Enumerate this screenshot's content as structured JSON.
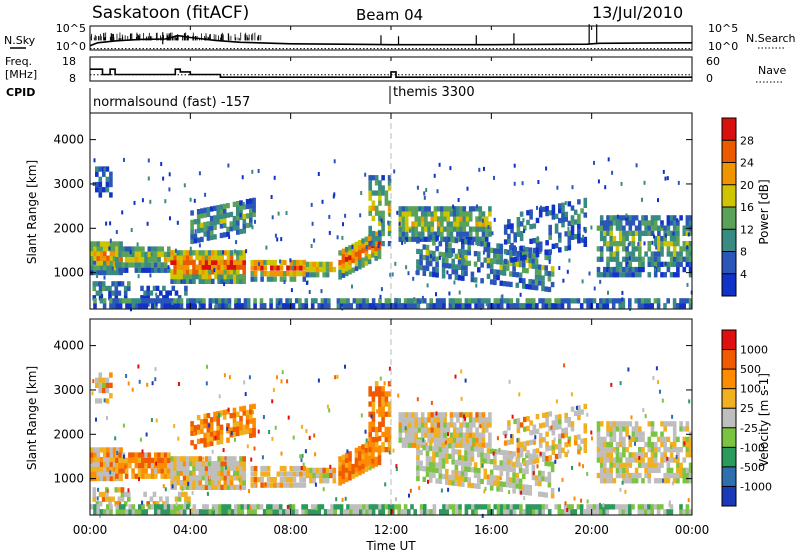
{
  "header": {
    "station": "Saskatoon (fitACF)",
    "beam": "Beam 04",
    "date": "13/Jul/2010"
  },
  "left_labels": {
    "nsky": "N.Sky",
    "freq_line1": "Freq.",
    "freq_line2": "[MHz]",
    "cpid": "CPID"
  },
  "right_labels": {
    "nsearch": "N.Search",
    "nave": "Nave"
  },
  "cpid_labels": {
    "first": "normalsound (fast) -157",
    "second": "themis 3300"
  },
  "colors": {
    "scale_blue": "#1f3fb8",
    "scale_green": "#4a9a5a",
    "scale_yellow": "#f5c800",
    "scale_orange": "#ff8a00",
    "scale_red": "#e81010",
    "gray": "#bfbfbf"
  },
  "chart_data": [
    {
      "type": "line",
      "panel": "noise",
      "ylabels": [
        "10^5",
        "10^0"
      ],
      "right_ylabels": [
        "10^5",
        "10^0"
      ],
      "series": [
        {
          "name": "N.Sky",
          "x": [
            0,
            0.3,
            1.0,
            2.0,
            3.0,
            3.5,
            4.0,
            5.0,
            6.0,
            8.0,
            10.0,
            12.0,
            16.0,
            19.8,
            20.3,
            24.0
          ],
          "y": [
            0.9,
            1.5,
            1.9,
            2.2,
            2.3,
            3.0,
            2.6,
            2.0,
            1.6,
            1.3,
            1.2,
            1.1,
            1.1,
            1.2,
            1.4,
            1.5
          ]
        },
        {
          "name": "N.Search",
          "x": [
            0,
            24
          ],
          "y": [
            0.3,
            0.3
          ]
        }
      ]
    },
    {
      "type": "line",
      "panel": "frequency",
      "ylabels": [
        "18",
        "8"
      ],
      "right_ylabels": [
        "60",
        "0"
      ],
      "series": [
        {
          "name": "Freq.",
          "x": [
            0,
            0.5,
            0.5,
            0.8,
            0.8,
            1.0,
            1.0,
            3.4,
            3.4,
            3.6,
            3.6,
            4.0,
            4.0,
            5.2,
            5.2,
            12.0,
            12.0,
            12.2,
            12.2,
            24.0
          ],
          "y": [
            12.9,
            12.9,
            10.7,
            10.7,
            12.9,
            12.9,
            10.7,
            10.7,
            12.9,
            12.9,
            11.8,
            11.8,
            10.7,
            10.7,
            9.6,
            9.6,
            11.8,
            11.8,
            9.6,
            9.6
          ]
        },
        {
          "name": "Nave",
          "x": [
            0,
            24
          ],
          "y": [
            10.6,
            10.6
          ]
        }
      ]
    },
    {
      "type": "heatmap",
      "panel": "power",
      "xlabel": "",
      "ylabel": "Slant Range [km]",
      "xlim": [
        0,
        24
      ],
      "ylim": [
        180,
        4600
      ],
      "yticks": [
        "1000",
        "2000",
        "3000",
        "4000"
      ],
      "colorbar": {
        "label": "Power [dB]",
        "ticks": [
          "4",
          "8",
          "12",
          "16",
          "20",
          "24",
          "28"
        ],
        "colors": [
          "#1032c8",
          "#2a56b8",
          "#3a8a84",
          "#5aa25a",
          "#cfc400",
          "#f09400",
          "#ec5a00",
          "#d81010"
        ]
      }
    },
    {
      "type": "heatmap",
      "panel": "velocity",
      "xlabel": "Time UT",
      "ylabel": "Slant Range [km]",
      "xlim": [
        0,
        24
      ],
      "ylim": [
        180,
        4600
      ],
      "xticks": [
        "00:00",
        "04:00",
        "08:00",
        "12:00",
        "16:00",
        "20:00",
        "00:00"
      ],
      "yticks": [
        "1000",
        "2000",
        "3000",
        "4000"
      ],
      "colorbar": {
        "label": "Velocity [m s-1]",
        "ticks": [
          "1000",
          "500",
          "100",
          "25",
          "-25",
          "-100",
          "-500",
          "-1000"
        ],
        "colors": [
          "#1a3ab8",
          "#2f6fb0",
          "#2c9a5c",
          "#7ac442",
          "#bebebe",
          "#f0b020",
          "#ff8c00",
          "#f05a00",
          "#e01010"
        ]
      }
    }
  ]
}
